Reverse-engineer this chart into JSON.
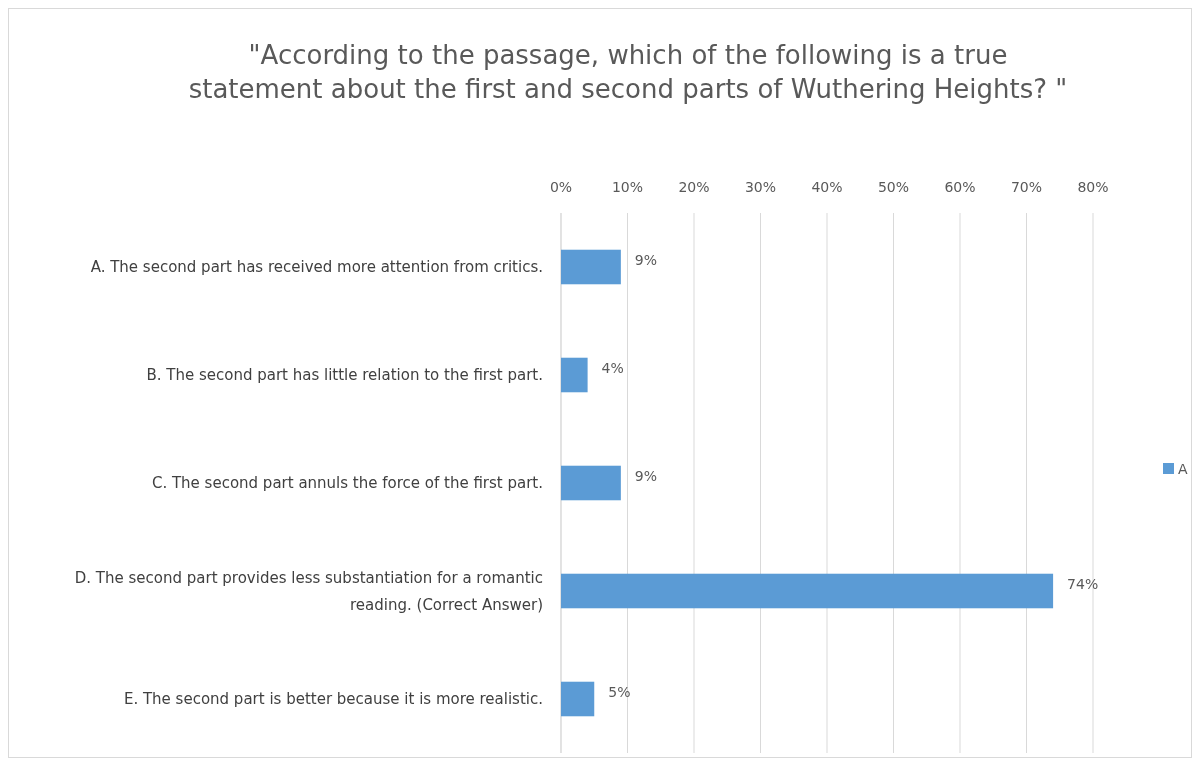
{
  "chart_data": {
    "type": "bar",
    "orientation": "horizontal",
    "title": "\"According to the passage, which of the following is a true statement about the first and second parts of Wuthering Heights? \"",
    "categories": [
      "A. The second part has received more attention from critics.",
      "B. The second part has little relation to the first part.",
      "C. The second part annuls the force of the first part.",
      "D. The second part provides less substantiation for a romantic reading. (Correct Answer)",
      "E. The second part is better because it is more realistic."
    ],
    "series": [
      {
        "name": "A",
        "color": "#5b9bd5",
        "values": [
          9,
          4,
          9,
          74,
          5
        ],
        "value_labels": [
          "9%",
          "4%",
          "9%",
          "74%",
          "5%"
        ]
      }
    ],
    "xlim": [
      0,
      80
    ],
    "xticks": [
      {
        "value": 0,
        "label": "0%"
      },
      {
        "value": 10,
        "label": "10%"
      },
      {
        "value": 20,
        "label": "20%"
      },
      {
        "value": 30,
        "label": "30%"
      },
      {
        "value": 40,
        "label": "40%"
      },
      {
        "value": 50,
        "label": "50%"
      },
      {
        "value": 60,
        "label": "60%"
      },
      {
        "value": 70,
        "label": "70%"
      },
      {
        "value": 80,
        "label": "80%"
      }
    ],
    "grid": "x",
    "legend": "right"
  }
}
